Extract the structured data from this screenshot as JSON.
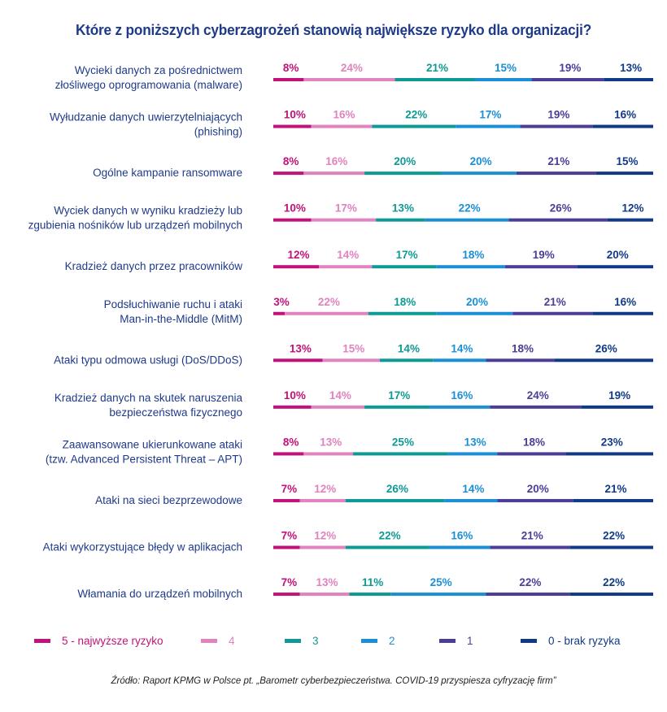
{
  "chart_data": {
    "type": "bar",
    "orientation": "horizontal",
    "stacked": true,
    "normalized_percent": true,
    "title": "Które z poniższych cyberzagrożeń stanowią największe ryzyko dla organizacji?",
    "xlabel": "",
    "ylabel": "",
    "xlim": [
      0,
      100
    ],
    "grid": false,
    "legend_position": "bottom",
    "categories": [
      [
        "Wycieki danych za pośrednictwem",
        "złośliwego oprogramowania (malware)"
      ],
      [
        "Wyłudzanie danych uwierzytelniających",
        "(phishing)"
      ],
      [
        "Ogólne kampanie ransomware"
      ],
      [
        "Wyciek danych w wyniku kradzieży lub",
        "zgubienia nośników lub urządzeń mobilnych"
      ],
      [
        "Kradzież danych przez pracowników"
      ],
      [
        "Podsłuchiwanie ruchu i ataki",
        "Man-in-the-Middle (MitM)"
      ],
      [
        "Ataki typu odmowa usługi (DoS/DDoS)"
      ],
      [
        "Kradzież danych na skutek naruszenia",
        "bezpieczeństwa fizycznego"
      ],
      [
        "Zaawansowane ukierunkowane ataki",
        "(tzw. Advanced Persistent Threat – APT)"
      ],
      [
        "Ataki na sieci bezprzewodowe"
      ],
      [
        "Ataki wykorzystujące błędy w aplikacjach"
      ],
      [
        "Włamania do urządzeń mobilnych"
      ]
    ],
    "series": [
      {
        "name": "5 - najwyższe ryzyko",
        "color": "#c2127a",
        "text_color": "#c2127a",
        "values": [
          8,
          10,
          8,
          10,
          12,
          3,
          13,
          10,
          8,
          7,
          7,
          7
        ]
      },
      {
        "name": "4",
        "color": "#e083bf",
        "text_color": "#e083bf",
        "values": [
          24,
          16,
          16,
          17,
          14,
          22,
          15,
          14,
          13,
          12,
          12,
          13
        ]
      },
      {
        "name": "3",
        "color": "#0e9a94",
        "text_color": "#0e9a94",
        "values": [
          21,
          22,
          20,
          13,
          17,
          18,
          14,
          17,
          25,
          26,
          22,
          11
        ]
      },
      {
        "name": "2",
        "color": "#1b8fd6",
        "text_color": "#1b8fd6",
        "values": [
          15,
          17,
          20,
          22,
          18,
          20,
          14,
          16,
          13,
          14,
          16,
          25
        ]
      },
      {
        "name": "1",
        "color": "#4a3e96",
        "text_color": "#4a3e96",
        "values": [
          19,
          19,
          21,
          26,
          19,
          21,
          18,
          24,
          18,
          20,
          21,
          22
        ]
      },
      {
        "name": "0 - brak ryzyka",
        "color": "#103a87",
        "text_color": "#103a87",
        "values": [
          13,
          16,
          15,
          12,
          20,
          16,
          26,
          19,
          23,
          21,
          22,
          22
        ]
      }
    ],
    "value_suffix": "%"
  },
  "source": "Źródło: Raport KPMG w Polsce pt. „Barometr cyberbezpieczeństwa. COVID-19 przyspiesza cyfryzację firm”"
}
